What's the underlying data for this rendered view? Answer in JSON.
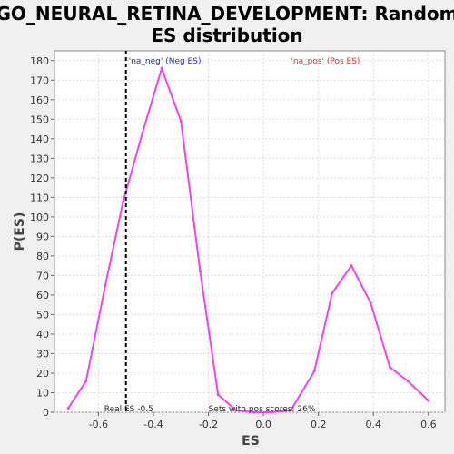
{
  "chart_data": {
    "type": "line",
    "title_line1": "GO_NEURAL_RETINA_DEVELOPMENT: Random",
    "title_line2": "ES distribution",
    "xlabel": "ES",
    "ylabel": "P(ES)",
    "xlim": [
      -0.76,
      0.66
    ],
    "ylim": [
      0,
      185
    ],
    "x_ticks": [
      -0.6,
      -0.4,
      -0.2,
      0.0,
      0.2,
      0.4,
      0.6
    ],
    "x_tick_labels": [
      "-0.6",
      "-0.4",
      "-0.2",
      "0.0",
      "0.2",
      "0.4",
      "0.6"
    ],
    "y_ticks": [
      0,
      10,
      20,
      30,
      40,
      50,
      60,
      70,
      80,
      90,
      100,
      110,
      120,
      130,
      140,
      150,
      160,
      170,
      180
    ],
    "y_tick_labels": [
      "0",
      "10",
      "20",
      "30",
      "40",
      "50",
      "60",
      "70",
      "80",
      "90",
      "100",
      "110",
      "120",
      "130",
      "140",
      "150",
      "160",
      "170",
      "180"
    ],
    "grid": true,
    "series": [
      {
        "color": "#ee44ee",
        "x": [
          -0.71,
          -0.645,
          -0.575,
          -0.51,
          -0.44,
          -0.37,
          -0.3,
          -0.23,
          -0.165,
          -0.1,
          -0.035,
          0.03,
          0.1,
          0.185,
          0.25,
          0.32,
          0.39,
          0.46,
          0.525,
          0.6
        ],
        "y": [
          2,
          16,
          65,
          108,
          143,
          176,
          149,
          72,
          9,
          1,
          0,
          0,
          1,
          21,
          61,
          75,
          56,
          23,
          16,
          6
        ]
      }
    ],
    "real_es": -0.5,
    "annotations": {
      "neg_label": "'na_neg' (Neg ES)",
      "neg_color": "#2a2ad0",
      "pos_label": "'na_pos' (Pos ES)",
      "pos_color": "#e03030",
      "real_es_label": "Real ES -0.5",
      "pos_scores_label": "Sets with pos scores: 26%"
    }
  }
}
